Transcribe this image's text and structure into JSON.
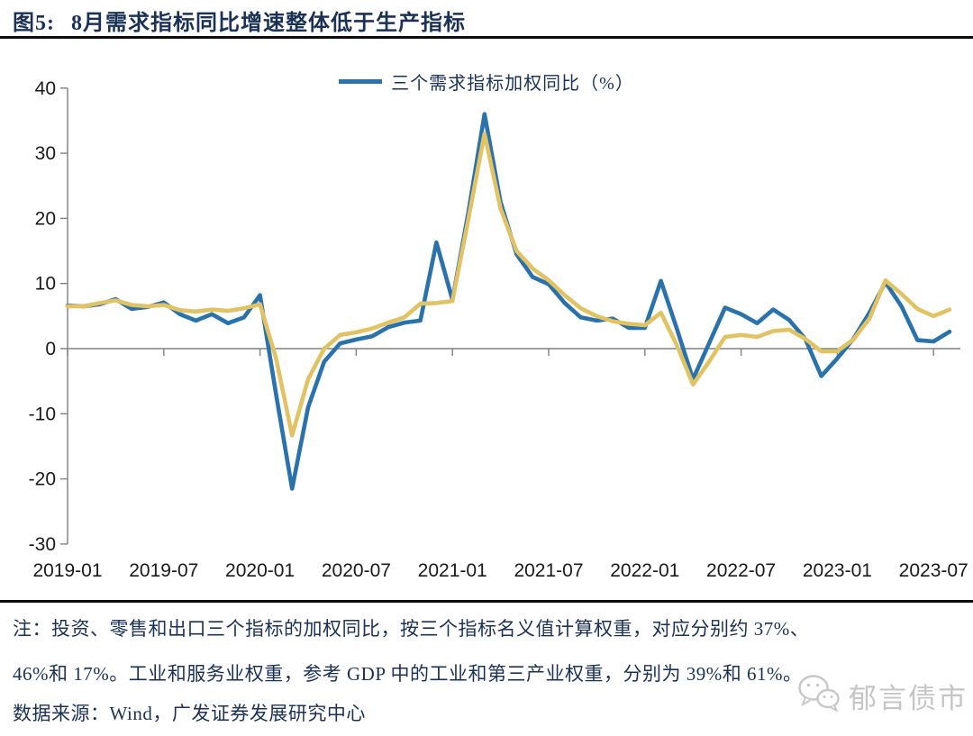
{
  "header": {
    "figure_label": "图5:",
    "title": "8月需求指标同比增速整体低于生产指标"
  },
  "legend": {
    "label": "三个需求指标加权同比（%）"
  },
  "chart_data": {
    "type": "line",
    "x": [
      "2019-01",
      "2019-02",
      "2019-03",
      "2019-04",
      "2019-05",
      "2019-06",
      "2019-07",
      "2019-08",
      "2019-09",
      "2019-10",
      "2019-11",
      "2019-12",
      "2020-01",
      "2020-02",
      "2020-03",
      "2020-04",
      "2020-05",
      "2020-06",
      "2020-07",
      "2020-08",
      "2020-09",
      "2020-10",
      "2020-11",
      "2020-12",
      "2021-01",
      "2021-02",
      "2021-03",
      "2021-04",
      "2021-05",
      "2021-06",
      "2021-07",
      "2021-08",
      "2021-09",
      "2021-10",
      "2021-11",
      "2021-12",
      "2022-01",
      "2022-02",
      "2022-03",
      "2022-04",
      "2022-05",
      "2022-06",
      "2022-07",
      "2022-08",
      "2022-09",
      "2022-10",
      "2022-11",
      "2022-12",
      "2023-01",
      "2023-02",
      "2023-03",
      "2023-04",
      "2023-05",
      "2023-06",
      "2023-07",
      "2023-08"
    ],
    "series": [
      {
        "name": "三个需求指标加权同比（%）",
        "color": "#2a72ab",
        "values": [
          6.6,
          6.5,
          6.8,
          7.6,
          6.1,
          6.4,
          7.1,
          5.3,
          4.3,
          5.3,
          3.9,
          4.8,
          8.2,
          -7.0,
          -21.5,
          -9.0,
          -2.0,
          0.8,
          1.4,
          1.9,
          3.3,
          4.0,
          4.3,
          16.3,
          7.5,
          21.0,
          36.0,
          22.5,
          14.5,
          11.0,
          9.9,
          7.0,
          4.8,
          4.3,
          4.6,
          3.2,
          3.2,
          10.4,
          3.0,
          -4.7,
          0.8,
          6.3,
          5.3,
          3.9,
          6.0,
          4.4,
          1.5,
          -4.2,
          -1.5,
          1.5,
          5.5,
          10.2,
          6.5,
          1.3,
          1.1,
          2.6
        ]
      },
      {
        "name": "",
        "color": "#e2c364",
        "values": [
          6.5,
          6.5,
          7.0,
          7.4,
          6.7,
          6.5,
          6.7,
          5.9,
          5.7,
          6.0,
          5.8,
          6.2,
          6.8,
          -1.5,
          -13.3,
          -4.7,
          0.0,
          2.1,
          2.5,
          3.1,
          4.0,
          4.8,
          6.9,
          7.0,
          7.3,
          20.0,
          33.0,
          21.5,
          15.0,
          12.3,
          10.5,
          8.2,
          6.2,
          5.0,
          4.2,
          3.8,
          3.6,
          5.5,
          0.5,
          -5.5,
          -2.0,
          1.8,
          2.1,
          1.8,
          2.7,
          2.9,
          1.5,
          -0.4,
          -0.4,
          1.4,
          4.6,
          10.5,
          8.4,
          6.1,
          5.0,
          6.0
        ]
      }
    ],
    "title": "三个需求指标加权同比（%）",
    "xlabel": "",
    "ylabel": "",
    "ylim": [
      -30,
      40
    ],
    "y_tick_step": 10,
    "y_tick_labels": [
      "40",
      "30",
      "20",
      "10",
      "0",
      "-10",
      "-20",
      "-30"
    ],
    "x_tick_labels": [
      "2019-01",
      "2019-07",
      "2020-01",
      "2020-07",
      "2021-01",
      "2021-07",
      "2022-01",
      "2022-07",
      "2023-01",
      "2023-07"
    ],
    "x_tick_every_months": 6,
    "grid": false,
    "zero_line": true,
    "legend_position": "top-center"
  },
  "notes": {
    "line1": "注：投资、零售和出口三个指标的加权同比，按三个指标名义值计算权重，对应分别约 37%、",
    "line2": "46%和 17%。工业和服务业权重，参考 GDP 中的工业和第三产业权重，分别为 39%和 61%。",
    "line3": "数据来源：Wind，广发证券发展研究中心"
  },
  "watermark": {
    "text": "郁言债市",
    "icon": "wechat-icon"
  },
  "colors": {
    "demand_line": "#2a72ab",
    "secondary_line": "#e2c364",
    "title_text": "#1b3155",
    "axis_line": "#808080",
    "axis_text": "#1a1a1a",
    "watermark": "#c5c5c5"
  }
}
